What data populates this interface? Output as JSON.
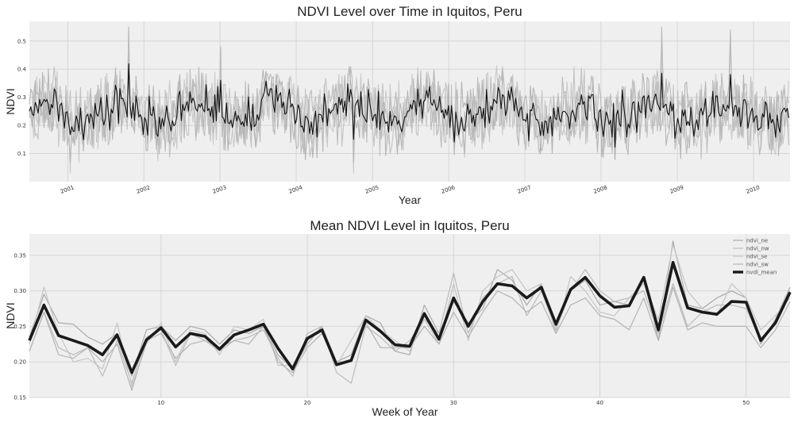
{
  "chart_data": [
    {
      "type": "line",
      "title": "NDVI Level over Time in Iquitos, Peru",
      "xlabel": "Year",
      "ylabel": "NDVI",
      "x_ticks": [
        "2001",
        "2002",
        "2003",
        "2004",
        "2005",
        "2006",
        "2007",
        "2008",
        "2009",
        "2010"
      ],
      "x_tick_labels_rotated": true,
      "y_ticks": [
        0.1,
        0.2,
        0.3,
        0.4,
        0.5
      ],
      "xlim": [
        "2000-07-01",
        "2010-06-25"
      ],
      "ylim": [
        0.0,
        0.57
      ],
      "grid": true,
      "background": "#efefef",
      "series": [
        {
          "color": "#aaaaaa",
          "role": "component"
        },
        {
          "color": "#bbbbbb",
          "role": "component"
        },
        {
          "color": "#c4c4c4",
          "role": "component"
        },
        {
          "color": "#b3b3b3",
          "role": "component"
        },
        {
          "color": "#111111",
          "role": "mean"
        }
      ],
      "sampling": "weekly",
      "peaks": [
        {
          "date": "2001-10-20",
          "value": 0.55
        },
        {
          "date": "2003-01-05",
          "value": 0.48
        },
        {
          "date": "2008-10-15",
          "value": 0.55
        },
        {
          "date": "2009-09-10",
          "value": 0.54
        }
      ],
      "troughs": [
        {
          "date": "2001-01-15",
          "value": 0.03
        },
        {
          "date": "2004-10-01",
          "value": 0.03
        }
      ]
    },
    {
      "type": "line",
      "title": "Mean NDVI Level in Iquitos, Peru",
      "xlabel": "Week of Year",
      "ylabel": "NDVI",
      "x_ticks": [
        10,
        20,
        30,
        40,
        50
      ],
      "y_ticks": [
        0.15,
        0.2,
        0.25,
        0.3,
        0.35
      ],
      "xlim": [
        1,
        53
      ],
      "ylim": [
        0.15,
        0.38
      ],
      "grid": true,
      "legend_position": "top-right",
      "background": "#efefef",
      "x": [
        1,
        2,
        3,
        4,
        5,
        6,
        7,
        8,
        9,
        10,
        11,
        12,
        13,
        14,
        15,
        16,
        17,
        18,
        19,
        20,
        21,
        22,
        23,
        24,
        25,
        26,
        27,
        28,
        29,
        30,
        31,
        32,
        33,
        34,
        35,
        36,
        37,
        38,
        39,
        40,
        41,
        42,
        43,
        44,
        45,
        46,
        47,
        48,
        49,
        50,
        51,
        52,
        53
      ],
      "series": [
        {
          "name": "ndvi_ne",
          "color": "#aaaaaa",
          "width": 1.2,
          "values": [
            0.235,
            0.295,
            0.255,
            0.253,
            0.235,
            0.225,
            0.24,
            0.18,
            0.245,
            0.25,
            0.23,
            0.25,
            0.245,
            0.225,
            0.245,
            0.24,
            0.25,
            0.21,
            0.19,
            0.225,
            0.25,
            0.2,
            0.21,
            0.265,
            0.255,
            0.215,
            0.21,
            0.28,
            0.24,
            0.285,
            0.255,
            0.275,
            0.33,
            0.315,
            0.28,
            0.31,
            0.25,
            0.3,
            0.315,
            0.28,
            0.285,
            0.28,
            0.32,
            0.23,
            0.37,
            0.28,
            0.275,
            0.29,
            0.3,
            0.29,
            0.225,
            0.26,
            0.305
          ]
        },
        {
          "name": "ndvi_nw",
          "color": "#bbbbbb",
          "width": 1.2,
          "values": [
            0.215,
            0.27,
            0.22,
            0.21,
            0.22,
            0.18,
            0.23,
            0.17,
            0.235,
            0.245,
            0.195,
            0.24,
            0.23,
            0.215,
            0.23,
            0.235,
            0.245,
            0.205,
            0.18,
            0.24,
            0.25,
            0.185,
            0.17,
            0.25,
            0.235,
            0.215,
            0.23,
            0.26,
            0.24,
            0.325,
            0.24,
            0.29,
            0.31,
            0.32,
            0.265,
            0.3,
            0.245,
            0.3,
            0.33,
            0.3,
            0.285,
            0.29,
            0.3,
            0.24,
            0.31,
            0.25,
            0.27,
            0.28,
            0.28,
            0.275,
            0.23,
            0.255,
            0.3
          ]
        },
        {
          "name": "ndvi_se",
          "color": "#c6c6c6",
          "width": 1.2,
          "values": [
            0.225,
            0.305,
            0.24,
            0.2,
            0.205,
            0.19,
            0.255,
            0.165,
            0.225,
            0.255,
            0.2,
            0.245,
            0.24,
            0.21,
            0.25,
            0.245,
            0.26,
            0.195,
            0.195,
            0.23,
            0.245,
            0.195,
            0.23,
            0.265,
            0.245,
            0.23,
            0.215,
            0.26,
            0.225,
            0.31,
            0.23,
            0.3,
            0.32,
            0.33,
            0.3,
            0.31,
            0.24,
            0.32,
            0.3,
            0.27,
            0.265,
            0.29,
            0.31,
            0.26,
            0.365,
            0.3,
            0.275,
            0.265,
            0.31,
            0.29,
            0.245,
            0.265,
            0.29
          ]
        },
        {
          "name": "ndvi_sw",
          "color": "#b3b3b3",
          "width": 1.2,
          "values": [
            0.215,
            0.27,
            0.21,
            0.205,
            0.22,
            0.2,
            0.225,
            0.16,
            0.23,
            0.24,
            0.205,
            0.225,
            0.23,
            0.22,
            0.23,
            0.225,
            0.25,
            0.2,
            0.185,
            0.22,
            0.24,
            0.2,
            0.2,
            0.255,
            0.22,
            0.22,
            0.22,
            0.25,
            0.225,
            0.27,
            0.235,
            0.27,
            0.3,
            0.29,
            0.27,
            0.285,
            0.24,
            0.28,
            0.29,
            0.265,
            0.26,
            0.245,
            0.29,
            0.23,
            0.305,
            0.245,
            0.255,
            0.25,
            0.25,
            0.25,
            0.22,
            0.245,
            0.285
          ]
        },
        {
          "name": "nvdi_mean",
          "color": "#1a1a1a",
          "width": 3.6,
          "values": [
            0.23,
            0.28,
            0.237,
            0.23,
            0.223,
            0.21,
            0.238,
            0.185,
            0.231,
            0.248,
            0.221,
            0.24,
            0.236,
            0.218,
            0.238,
            0.245,
            0.253,
            0.219,
            0.19,
            0.233,
            0.245,
            0.196,
            0.202,
            0.259,
            0.243,
            0.224,
            0.222,
            0.268,
            0.232,
            0.29,
            0.25,
            0.285,
            0.31,
            0.307,
            0.29,
            0.305,
            0.253,
            0.302,
            0.319,
            0.293,
            0.277,
            0.279,
            0.319,
            0.245,
            0.34,
            0.276,
            0.27,
            0.267,
            0.285,
            0.284,
            0.23,
            0.255,
            0.298
          ]
        }
      ]
    }
  ]
}
